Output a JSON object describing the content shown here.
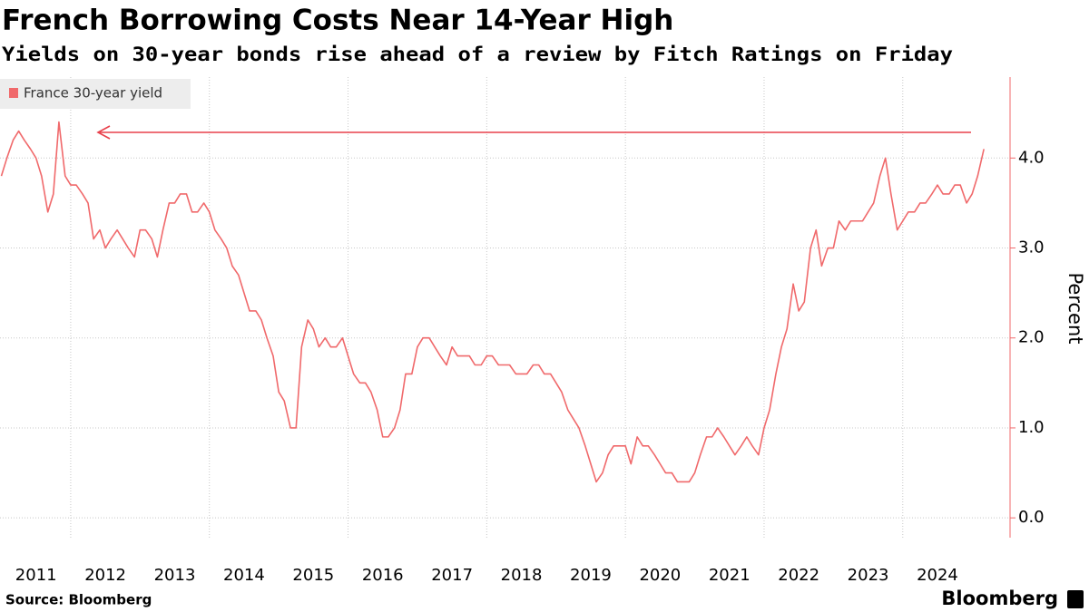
{
  "chart_data": {
    "type": "line",
    "title": "French Borrowing Costs Near 14-Year High",
    "subtitle": "Yields on 30-year bonds rise ahead of a review by Fitch Ratings on Friday",
    "y_label": "Percent",
    "source": "Source: Bloomberg",
    "brand": "Bloomberg",
    "xlim": [
      2011.0,
      2025.22
    ],
    "xticks": [
      2011,
      2012,
      2013,
      2014,
      2015,
      2016,
      2017,
      2018,
      2019,
      2020,
      2021,
      2022,
      2023,
      2024
    ],
    "ylim": [
      -0.22,
      4.9
    ],
    "yticks": [
      {
        "value": 0,
        "label": "0.0"
      },
      {
        "value": 1,
        "label": "1.0"
      },
      {
        "value": 2,
        "label": "2.0"
      },
      {
        "value": 3,
        "label": "3.0"
      },
      {
        "value": 4,
        "label": "4.0"
      }
    ],
    "grid": true,
    "legend": "top-left",
    "x": [
      2011.0,
      2011.08,
      2011.17,
      2011.25,
      2011.33,
      2011.42,
      2011.5,
      2011.58,
      2011.67,
      2011.75,
      2011.83,
      2011.92,
      2012.0,
      2012.08,
      2012.17,
      2012.25,
      2012.33,
      2012.42,
      2012.5,
      2012.58,
      2012.67,
      2012.75,
      2012.83,
      2012.92,
      2013.0,
      2013.08,
      2013.17,
      2013.25,
      2013.33,
      2013.42,
      2013.5,
      2013.58,
      2013.67,
      2013.75,
      2013.83,
      2013.92,
      2014.0,
      2014.08,
      2014.17,
      2014.25,
      2014.33,
      2014.42,
      2014.5,
      2014.58,
      2014.67,
      2014.75,
      2014.83,
      2014.92,
      2015.0,
      2015.08,
      2015.17,
      2015.25,
      2015.33,
      2015.42,
      2015.5,
      2015.58,
      2015.67,
      2015.75,
      2015.83,
      2015.92,
      2016.0,
      2016.08,
      2016.17,
      2016.25,
      2016.33,
      2016.42,
      2016.5,
      2016.58,
      2016.67,
      2016.75,
      2016.83,
      2016.92,
      2017.0,
      2017.08,
      2017.17,
      2017.25,
      2017.33,
      2017.42,
      2017.5,
      2017.58,
      2017.67,
      2017.75,
      2017.83,
      2017.92,
      2018.0,
      2018.08,
      2018.17,
      2018.25,
      2018.33,
      2018.42,
      2018.5,
      2018.58,
      2018.67,
      2018.75,
      2018.83,
      2018.92,
      2019.0,
      2019.08,
      2019.17,
      2019.25,
      2019.33,
      2019.42,
      2019.5,
      2019.58,
      2019.67,
      2019.75,
      2019.83,
      2019.92,
      2020.0,
      2020.08,
      2020.17,
      2020.25,
      2020.33,
      2020.42,
      2020.5,
      2020.58,
      2020.67,
      2020.75,
      2020.83,
      2020.92,
      2021.0,
      2021.08,
      2021.17,
      2021.25,
      2021.33,
      2021.42,
      2021.5,
      2021.58,
      2021.67,
      2021.75,
      2021.83,
      2021.92,
      2022.0,
      2022.08,
      2022.17,
      2022.25,
      2022.33,
      2022.42,
      2022.5,
      2022.58,
      2022.67,
      2022.75,
      2022.83,
      2022.92,
      2023.0,
      2023.08,
      2023.17,
      2023.25,
      2023.33,
      2023.42,
      2023.5,
      2023.58,
      2023.67,
      2023.75,
      2023.83,
      2023.92,
      2024.0,
      2024.08,
      2024.17,
      2024.25,
      2024.33,
      2024.42,
      2024.5,
      2024.58,
      2024.67,
      2024.75,
      2024.83,
      2024.92,
      2025.0,
      2025.08,
      2025.17
    ],
    "series": [
      {
        "name": "France 30-year yield",
        "color": "#f0696b",
        "values": [
          3.8,
          4.0,
          4.2,
          4.3,
          4.2,
          4.1,
          4.0,
          3.8,
          3.4,
          3.6,
          4.4,
          3.8,
          3.7,
          3.7,
          3.6,
          3.5,
          3.1,
          3.2,
          3.0,
          3.1,
          3.2,
          3.1,
          3.0,
          2.9,
          3.2,
          3.2,
          3.1,
          2.9,
          3.2,
          3.5,
          3.5,
          3.6,
          3.6,
          3.4,
          3.4,
          3.5,
          3.4,
          3.2,
          3.1,
          3.0,
          2.8,
          2.7,
          2.5,
          2.3,
          2.3,
          2.2,
          2.0,
          1.8,
          1.4,
          1.3,
          1.0,
          1.0,
          1.9,
          2.2,
          2.1,
          1.9,
          2.0,
          1.9,
          1.9,
          2.0,
          1.8,
          1.6,
          1.5,
          1.5,
          1.4,
          1.2,
          0.9,
          0.9,
          1.0,
          1.2,
          1.6,
          1.6,
          1.9,
          2.0,
          2.0,
          1.9,
          1.8,
          1.7,
          1.9,
          1.8,
          1.8,
          1.8,
          1.7,
          1.7,
          1.8,
          1.8,
          1.7,
          1.7,
          1.7,
          1.6,
          1.6,
          1.6,
          1.7,
          1.7,
          1.6,
          1.6,
          1.5,
          1.4,
          1.2,
          1.1,
          1.0,
          0.8,
          0.6,
          0.4,
          0.5,
          0.7,
          0.8,
          0.8,
          0.8,
          0.6,
          0.9,
          0.8,
          0.8,
          0.7,
          0.6,
          0.5,
          0.5,
          0.4,
          0.4,
          0.4,
          0.5,
          0.7,
          0.9,
          0.9,
          1.0,
          0.9,
          0.8,
          0.7,
          0.8,
          0.9,
          0.8,
          0.7,
          1.0,
          1.2,
          1.6,
          1.9,
          2.1,
          2.6,
          2.3,
          2.4,
          3.0,
          3.2,
          2.8,
          3.0,
          3.0,
          3.3,
          3.2,
          3.3,
          3.3,
          3.3,
          3.4,
          3.5,
          3.8,
          4.0,
          3.6,
          3.2,
          3.3,
          3.4,
          3.4,
          3.5,
          3.5,
          3.6,
          3.7,
          3.6,
          3.6,
          3.7,
          3.7,
          3.5,
          3.6,
          3.8,
          4.1
        ]
      }
    ]
  }
}
